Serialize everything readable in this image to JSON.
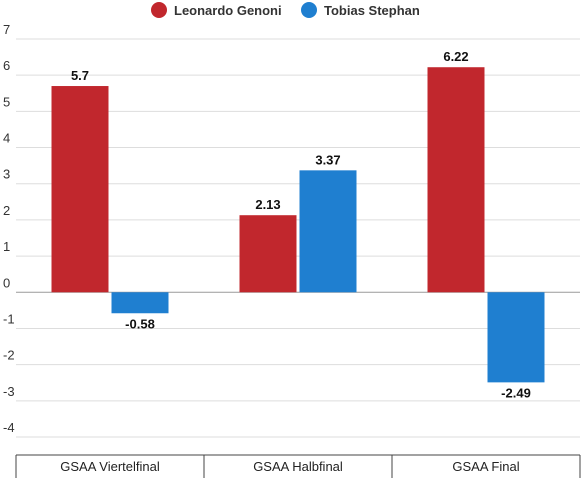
{
  "chart_data": {
    "type": "bar",
    "categories": [
      "GSAA Viertelfinal",
      "GSAA Halbfinal",
      "GSAA Final"
    ],
    "series": [
      {
        "name": "Leonardo Genoni",
        "color": "#c1272d",
        "values": [
          5.7,
          2.13,
          6.22
        ],
        "labels": [
          "5.7",
          "2.13",
          "6.22"
        ]
      },
      {
        "name": "Tobias Stephan",
        "color": "#1f7fd0",
        "values": [
          -0.58,
          3.37,
          -2.49
        ],
        "labels": [
          "-0.58",
          "3.37",
          "-2.49"
        ]
      }
    ],
    "yticks": [
      7,
      6,
      5,
      4,
      3,
      2,
      1,
      0,
      -1,
      -2,
      -3,
      -4
    ],
    "ytick_labels": [
      "7",
      "6",
      "5",
      "4",
      "3",
      "2",
      "1",
      "0",
      "-1",
      "-2",
      "-3",
      "-4"
    ],
    "ylim": [
      -4,
      7
    ],
    "grid": true,
    "legend_position": "top"
  }
}
